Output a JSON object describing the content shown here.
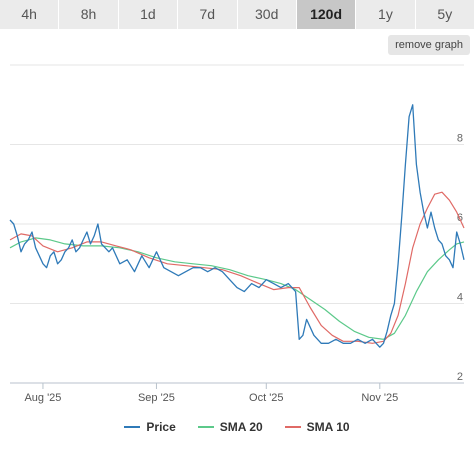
{
  "tabs": [
    {
      "label": "4h",
      "active": false
    },
    {
      "label": "8h",
      "active": false
    },
    {
      "label": "1d",
      "active": false
    },
    {
      "label": "7d",
      "active": false
    },
    {
      "label": "30d",
      "active": false
    },
    {
      "label": "120d",
      "active": true
    },
    {
      "label": "1y",
      "active": false
    },
    {
      "label": "5y",
      "active": false
    }
  ],
  "remove_graph_label": "remove graph",
  "chart_data": {
    "type": "line",
    "title": "",
    "xlabel": "",
    "ylabel": "",
    "x_start": "2025-07-23",
    "x_end": "2025-11-24",
    "ylim": [
      2,
      10
    ],
    "y_ticks": [
      "2",
      "4",
      "6",
      "8"
    ],
    "x_ticks": [
      {
        "label": "Aug '25",
        "date": "2025-08-01"
      },
      {
        "label": "Sep '25",
        "date": "2025-09-01"
      },
      {
        "label": "Oct '25",
        "date": "2025-10-01"
      },
      {
        "label": "Nov '25",
        "date": "2025-11-01"
      }
    ],
    "grid": "horizontal",
    "legend": "bottom",
    "series": [
      {
        "name": "Price",
        "color": "#2f7ab8",
        "x": [
          "2025-07-23",
          "2025-07-24",
          "2025-07-25",
          "2025-07-26",
          "2025-07-27",
          "2025-07-28",
          "2025-07-29",
          "2025-07-30",
          "2025-07-31",
          "2025-08-01",
          "2025-08-02",
          "2025-08-03",
          "2025-08-04",
          "2025-08-05",
          "2025-08-06",
          "2025-08-07",
          "2025-08-08",
          "2025-08-09",
          "2025-08-10",
          "2025-08-11",
          "2025-08-12",
          "2025-08-13",
          "2025-08-14",
          "2025-08-15",
          "2025-08-16",
          "2025-08-17",
          "2025-08-18",
          "2025-08-19",
          "2025-08-20",
          "2025-08-22",
          "2025-08-24",
          "2025-08-26",
          "2025-08-28",
          "2025-08-30",
          "2025-09-01",
          "2025-09-03",
          "2025-09-05",
          "2025-09-07",
          "2025-09-09",
          "2025-09-11",
          "2025-09-13",
          "2025-09-15",
          "2025-09-17",
          "2025-09-19",
          "2025-09-21",
          "2025-09-23",
          "2025-09-25",
          "2025-09-27",
          "2025-09-29",
          "2025-10-01",
          "2025-10-03",
          "2025-10-05",
          "2025-10-07",
          "2025-10-09",
          "2025-10-10",
          "2025-10-11",
          "2025-10-12",
          "2025-10-14",
          "2025-10-16",
          "2025-10-18",
          "2025-10-20",
          "2025-10-22",
          "2025-10-24",
          "2025-10-26",
          "2025-10-28",
          "2025-10-30",
          "2025-11-01",
          "2025-11-02",
          "2025-11-03",
          "2025-11-04",
          "2025-11-05",
          "2025-11-06",
          "2025-11-07",
          "2025-11-08",
          "2025-11-09",
          "2025-11-10",
          "2025-11-11",
          "2025-11-12",
          "2025-11-13",
          "2025-11-14",
          "2025-11-15",
          "2025-11-16",
          "2025-11-17",
          "2025-11-18",
          "2025-11-19",
          "2025-11-20",
          "2025-11-21",
          "2025-11-22",
          "2025-11-23",
          "2025-11-24"
        ],
        "values": [
          6.1,
          6.0,
          5.7,
          5.3,
          5.5,
          5.6,
          5.8,
          5.4,
          5.2,
          5.0,
          4.9,
          5.2,
          5.3,
          5.0,
          5.1,
          5.3,
          5.4,
          5.6,
          5.3,
          5.4,
          5.6,
          5.8,
          5.5,
          5.7,
          6.0,
          5.5,
          5.4,
          5.3,
          5.4,
          5.0,
          5.1,
          4.8,
          5.2,
          4.9,
          5.3,
          4.9,
          4.8,
          4.7,
          4.8,
          4.9,
          4.9,
          4.8,
          4.9,
          4.8,
          4.6,
          4.4,
          4.3,
          4.5,
          4.4,
          4.6,
          4.5,
          4.4,
          4.5,
          4.3,
          3.1,
          3.2,
          3.6,
          3.2,
          3.0,
          3.0,
          3.1,
          3.0,
          3.0,
          3.1,
          3.0,
          3.1,
          2.9,
          3.0,
          3.3,
          3.7,
          4.0,
          5.0,
          6.2,
          7.5,
          8.7,
          9.0,
          7.5,
          6.8,
          6.3,
          5.9,
          6.3,
          5.9,
          5.6,
          5.5,
          5.2,
          5.1,
          4.9,
          5.8,
          5.5,
          5.1
        ]
      },
      {
        "name": "SMA 20",
        "color": "#5cc98a",
        "x": [
          "2025-07-23",
          "2025-07-26",
          "2025-07-30",
          "2025-08-03",
          "2025-08-07",
          "2025-08-12",
          "2025-08-17",
          "2025-08-22",
          "2025-08-27",
          "2025-09-01",
          "2025-09-06",
          "2025-09-11",
          "2025-09-16",
          "2025-09-21",
          "2025-09-26",
          "2025-10-01",
          "2025-10-05",
          "2025-10-09",
          "2025-10-13",
          "2025-10-17",
          "2025-10-21",
          "2025-10-25",
          "2025-10-29",
          "2025-11-02",
          "2025-11-05",
          "2025-11-08",
          "2025-11-11",
          "2025-11-14",
          "2025-11-17",
          "2025-11-20",
          "2025-11-22",
          "2025-11-24"
        ],
        "values": [
          5.4,
          5.55,
          5.65,
          5.6,
          5.5,
          5.45,
          5.45,
          5.4,
          5.3,
          5.15,
          5.05,
          5.0,
          4.95,
          4.85,
          4.7,
          4.6,
          4.5,
          4.35,
          4.1,
          3.85,
          3.55,
          3.3,
          3.15,
          3.1,
          3.25,
          3.7,
          4.3,
          4.8,
          5.1,
          5.35,
          5.5,
          5.55
        ]
      },
      {
        "name": "SMA 10",
        "color": "#e06a66",
        "x": [
          "2025-07-23",
          "2025-07-26",
          "2025-07-29",
          "2025-08-01",
          "2025-08-05",
          "2025-08-09",
          "2025-08-13",
          "2025-08-17",
          "2025-08-21",
          "2025-08-25",
          "2025-08-30",
          "2025-09-04",
          "2025-09-09",
          "2025-09-14",
          "2025-09-19",
          "2025-09-24",
          "2025-09-29",
          "2025-10-03",
          "2025-10-07",
          "2025-10-10",
          "2025-10-13",
          "2025-10-16",
          "2025-10-19",
          "2025-10-22",
          "2025-10-26",
          "2025-10-30",
          "2025-11-02",
          "2025-11-04",
          "2025-11-06",
          "2025-11-08",
          "2025-11-10",
          "2025-11-12",
          "2025-11-14",
          "2025-11-16",
          "2025-11-18",
          "2025-11-20",
          "2025-11-22",
          "2025-11-24"
        ],
        "values": [
          5.6,
          5.75,
          5.7,
          5.45,
          5.3,
          5.4,
          5.55,
          5.55,
          5.45,
          5.35,
          5.15,
          5.0,
          4.95,
          4.9,
          4.85,
          4.7,
          4.5,
          4.35,
          4.4,
          4.4,
          3.9,
          3.45,
          3.2,
          3.05,
          3.05,
          3.0,
          3.05,
          3.25,
          3.7,
          4.5,
          5.4,
          6.0,
          6.4,
          6.75,
          6.8,
          6.6,
          6.3,
          5.9
        ]
      }
    ]
  }
}
